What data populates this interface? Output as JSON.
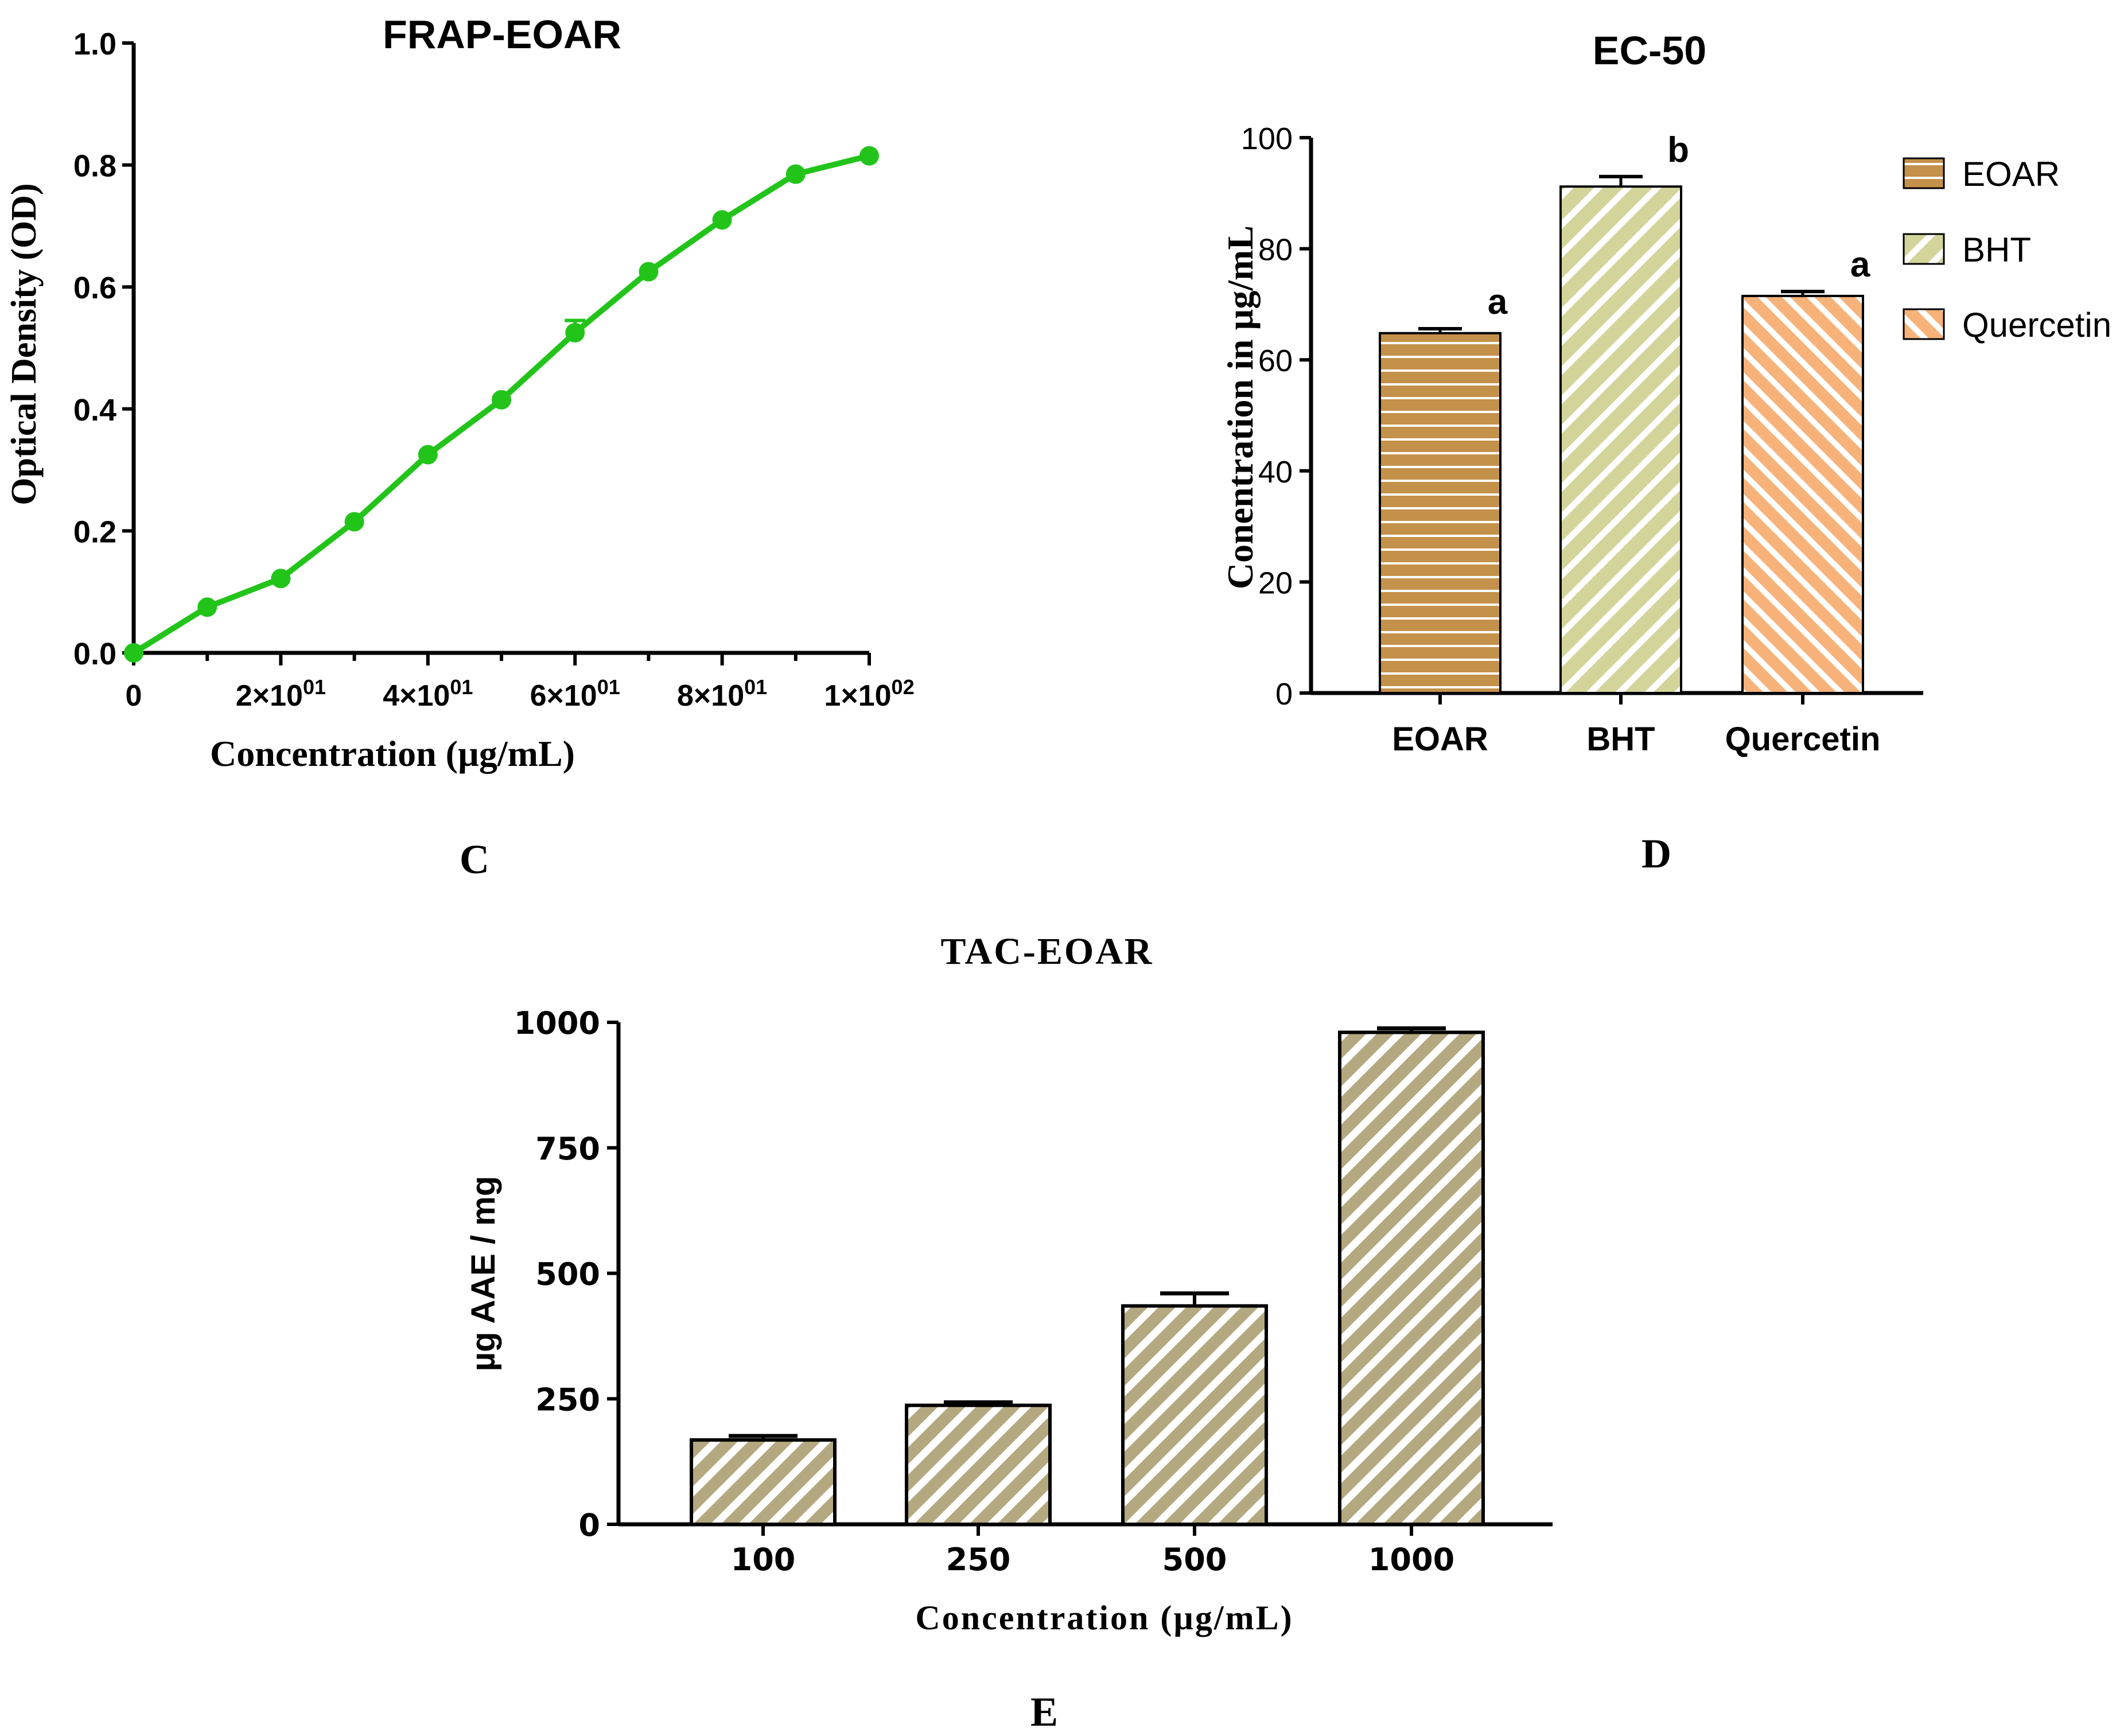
{
  "chart_data": [
    {
      "panel": "C",
      "type": "line",
      "title": "FRAP-EOAR",
      "xlabel": "Concentration (µg/mL)",
      "ylabel": "Optical Density (OD)",
      "x": [
        0,
        10,
        20,
        30,
        40,
        50,
        60,
        70,
        80,
        90,
        100
      ],
      "values": [
        0.0,
        0.075,
        0.122,
        0.215,
        0.325,
        0.415,
        0.525,
        0.625,
        0.71,
        0.785,
        0.815
      ],
      "errors": [
        0,
        0,
        0,
        0,
        0,
        0,
        0.02,
        0,
        0,
        0,
        0
      ],
      "xlim": [
        0,
        100
      ],
      "ylim": [
        0,
        1.0
      ],
      "xticks": [
        {
          "value": 0,
          "mant": "0",
          "exp": ""
        },
        {
          "value": 20,
          "mant": "2×10",
          "exp": "01"
        },
        {
          "value": 40,
          "mant": "4×10",
          "exp": "01"
        },
        {
          "value": 60,
          "mant": "6×10",
          "exp": "01"
        },
        {
          "value": 80,
          "mant": "8×10",
          "exp": "01"
        },
        {
          "value": 100,
          "mant": "1×10",
          "exp": "02"
        }
      ],
      "yticks": [
        "0.0",
        "0.2",
        "0.4",
        "0.6",
        "0.8",
        "1.0"
      ],
      "color": "#22c41a"
    },
    {
      "panel": "D",
      "type": "bar",
      "title": "EC-50",
      "xlabel": "",
      "ylabel": "Conentration in µg/mL",
      "categories": [
        "EOAR",
        "BHT",
        "Quercetin"
      ],
      "values": [
        64.8,
        91.2,
        71.5
      ],
      "errors": [
        0.8,
        1.8,
        0.8
      ],
      "significance": [
        "a",
        "b",
        "a"
      ],
      "colors": [
        "#c4914a",
        "#d3d49a",
        "#f7b27a"
      ],
      "patterns": [
        "horizontal",
        "diagonal",
        "diagonal-reverse"
      ],
      "ylim": [
        0,
        100
      ],
      "yticks": [
        "0",
        "20",
        "40",
        "60",
        "80",
        "100"
      ],
      "legend": [
        "EOAR",
        "BHT",
        "Quercetin"
      ],
      "legend_position": "right"
    },
    {
      "panel": "E",
      "type": "bar",
      "title": "TAC-EOAR",
      "xlabel": "Concentration (µg/mL)",
      "ylabel": "µg AAE / mg",
      "categories": [
        "100",
        "250",
        "500",
        "1000"
      ],
      "values": [
        168,
        237,
        435,
        980
      ],
      "errors": [
        8,
        6,
        25,
        8
      ],
      "color": "#b4a880",
      "ylim": [
        0,
        1000
      ],
      "yticks": [
        "0",
        "250",
        "500",
        "750",
        "1000"
      ]
    }
  ],
  "panel_labels": [
    "C",
    "D",
    "E"
  ]
}
